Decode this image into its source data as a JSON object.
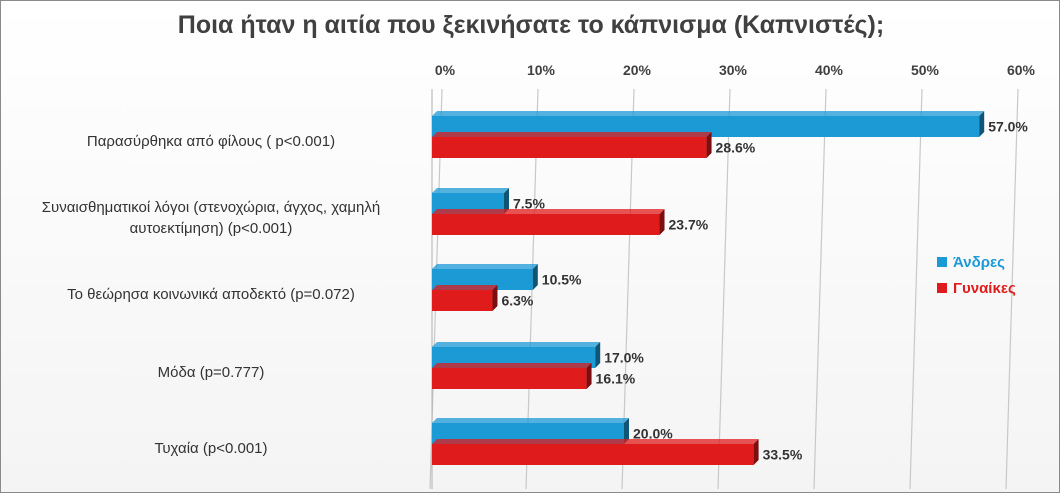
{
  "chart_data": {
    "type": "bar",
    "orientation": "horizontal",
    "title": "Ποια ήταν η αιτία που ξεκινήσατε το κάπνισμα (Καπνιστές);",
    "categories": [
      "Παρασύρθηκα από φίλους ( p<0.001)",
      "Συναισθηματικοί λόγοι (στενοχώρια, άγχος, χαμηλή αυτοεκτίμηση) (p<0.001)",
      "Το θεώρησα κοινωνικά αποδεκτό (p=0.072)",
      "Μόδα (p=0.777)",
      "Τυχαία (p<0.001)"
    ],
    "series": [
      {
        "name": "Άνδρες",
        "color": "#1b9ad6",
        "values": [
          57.0,
          7.5,
          10.5,
          17.0,
          20.0
        ],
        "labels": [
          "57.0%",
          "7.5%",
          "10.5%",
          "17.0%",
          "20.0%"
        ]
      },
      {
        "name": "Γυναίκες",
        "color": "#e01b1b",
        "values": [
          28.6,
          23.7,
          6.3,
          16.1,
          33.5
        ],
        "labels": [
          "28.6%",
          "23.7%",
          "6.3%",
          "16.1%",
          "33.5%"
        ]
      }
    ],
    "x_ticks": [
      "0%",
      "10%",
      "20%",
      "30%",
      "40%",
      "50%",
      "60%"
    ],
    "xlim": [
      0,
      60
    ],
    "x_axis_position": "top",
    "grid": true,
    "legend_position": "right",
    "xlabel": "",
    "ylabel": ""
  }
}
